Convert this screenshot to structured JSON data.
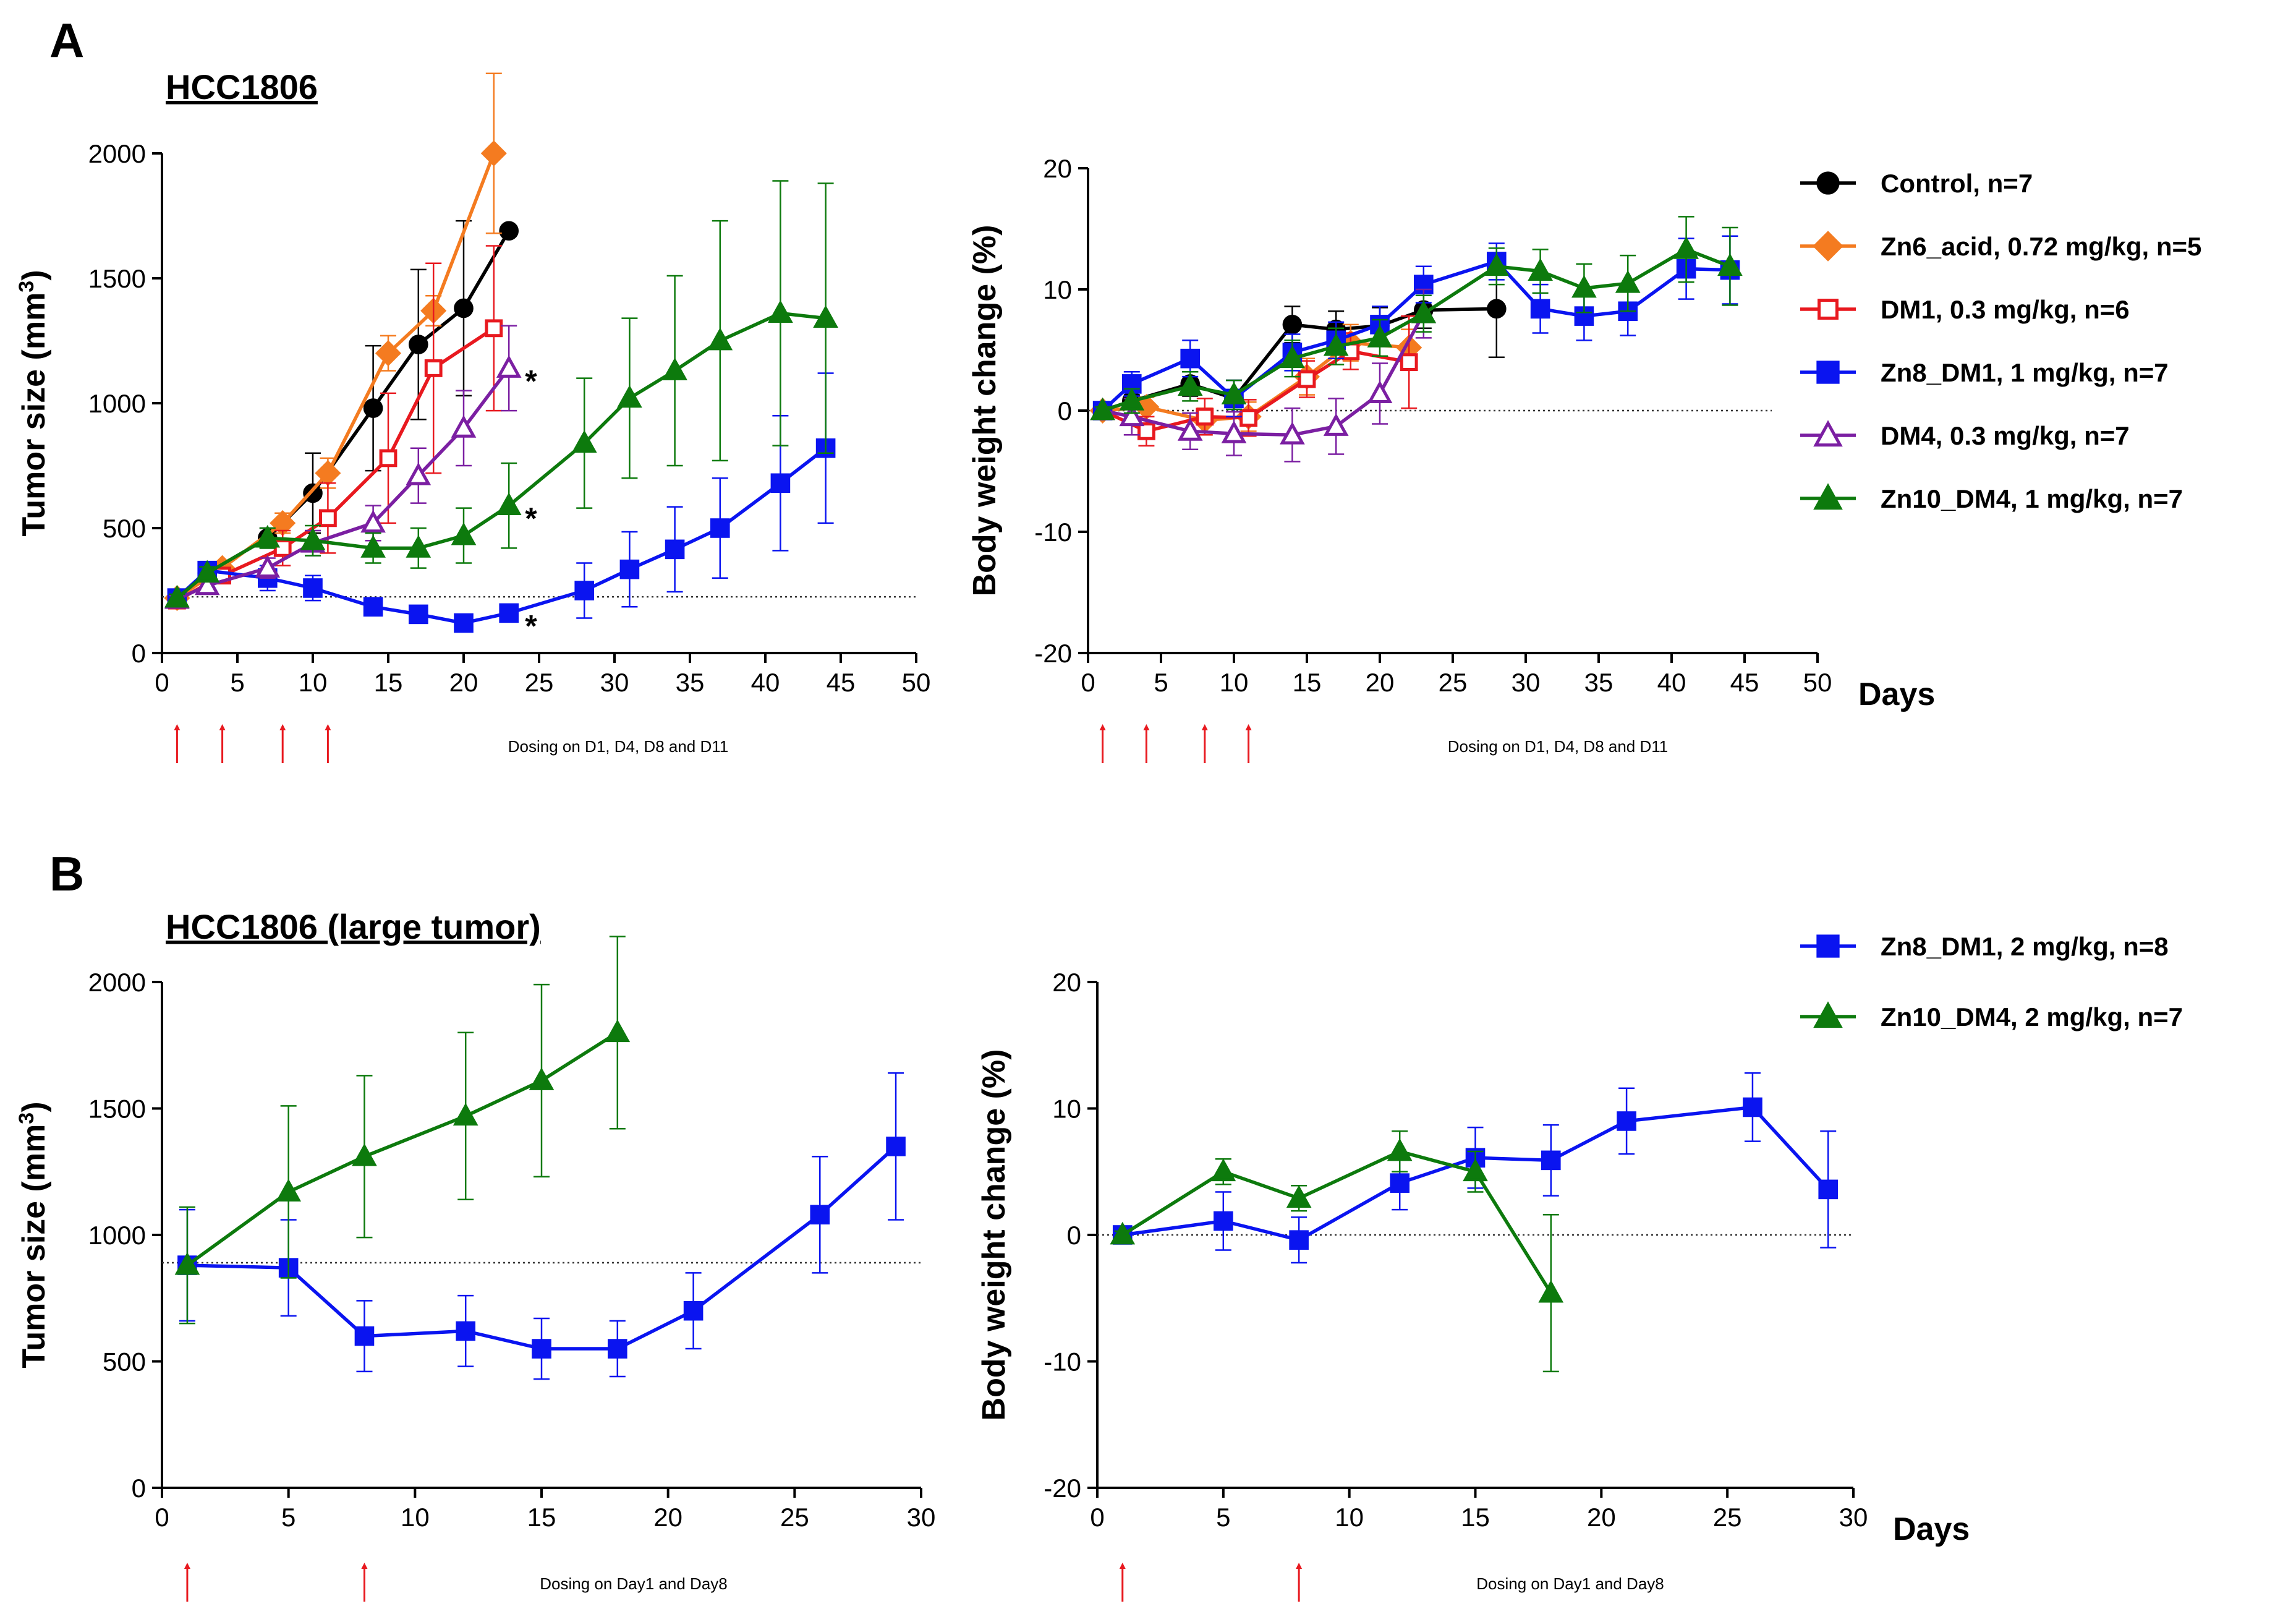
{
  "panels": {
    "a": {
      "letter": "A",
      "title": "HCC1806",
      "dosing_note": "Dosing on D1, D4, D8 and D11",
      "dosing_days": [
        1,
        4,
        8,
        11
      ]
    },
    "b": {
      "letter": "B",
      "title": "HCC1806 (large tumor)",
      "dosing_note": "Dosing on Day1 and Day8",
      "dosing_days": [
        1,
        8
      ]
    }
  },
  "labels": {
    "days": "Days",
    "tumor_size_pre": "Tumor size (mm",
    "tumor_size_sup": "3",
    "tumor_size_post": ")",
    "sig": "*"
  },
  "legend_a": [
    {
      "label": "Control, n=7",
      "color": "#000000",
      "marker": "circle",
      "filled": true
    },
    {
      "label": "Zn6_acid, 0.72 mg/kg, n=5",
      "color": "#f47b20",
      "marker": "diamond",
      "filled": true
    },
    {
      "label": "DM1, 0.3 mg/kg, n=6",
      "color": "#e8191f",
      "marker": "square",
      "filled": false
    },
    {
      "label": "Zn8_DM1, 1 mg/kg, n=7",
      "color": "#0a14f0",
      "marker": "square",
      "filled": true
    },
    {
      "label": "DM4, 0.3 mg/kg, n=7",
      "color": "#7b1fa2",
      "marker": "triangle",
      "filled": false
    },
    {
      "label": "Zn10_DM4, 1 mg/kg, n=7",
      "color": "#0d7a0d",
      "marker": "triangle",
      "filled": true
    }
  ],
  "legend_b": [
    {
      "label": "Zn8_DM1, 2 mg/kg, n=8",
      "color": "#0a14f0",
      "marker": "square",
      "filled": true
    },
    {
      "label": "Zn10_DM4, 2 mg/kg, n=7",
      "color": "#0d7a0d",
      "marker": "triangle",
      "filled": true
    }
  ],
  "chart_data": [
    {
      "id": "a_tumor",
      "type": "line",
      "title": "HCC1806",
      "xlabel": "",
      "ylabel": "Tumor size (mm3)",
      "xlim": [
        0,
        50
      ],
      "ylim": [
        0,
        2000
      ],
      "xticks": [
        0,
        5,
        10,
        15,
        20,
        25,
        30,
        35,
        40,
        45,
        50
      ],
      "yticks": [
        0,
        500,
        1000,
        1500,
        2000
      ],
      "baseline": 225,
      "series": [
        {
          "name": "Control, n=7",
          "x": [
            1,
            3,
            7,
            10,
            14,
            17,
            20,
            23
          ],
          "y": [
            220,
            320,
            460,
            640,
            980,
            1235,
            1380,
            1690
          ],
          "err": [
            20,
            25,
            40,
            160,
            250,
            300,
            350,
            0
          ]
        },
        {
          "name": "Zn6_acid, 0.72 mg/kg, n=5",
          "x": [
            1,
            4,
            8,
            11,
            15,
            18,
            22
          ],
          "y": [
            220,
            340,
            520,
            720,
            1200,
            1370,
            2000
          ],
          "err": [
            15,
            25,
            40,
            60,
            70,
            60,
            320
          ]
        },
        {
          "name": "DM1, 0.3 mg/kg, n=6",
          "x": [
            1,
            4,
            8,
            11,
            15,
            18,
            22
          ],
          "y": [
            210,
            310,
            420,
            540,
            780,
            1140,
            1300
          ],
          "err": [
            15,
            30,
            70,
            140,
            260,
            420,
            330
          ]
        },
        {
          "name": "Zn8_DM1, 1 mg/kg, n=7",
          "x": [
            1,
            3,
            7,
            10,
            14,
            17,
            20,
            23,
            28,
            31,
            34,
            37,
            41,
            44
          ],
          "y": [
            220,
            330,
            300,
            260,
            185,
            155,
            120,
            160,
            250,
            335,
            415,
            500,
            680,
            820
          ],
          "err": [
            10,
            30,
            50,
            50,
            30,
            30,
            25,
            30,
            110,
            150,
            170,
            200,
            270,
            300
          ]
        },
        {
          "name": "DM4, 0.3 mg/kg, n=7",
          "x": [
            1,
            3,
            7,
            10,
            14,
            17,
            20,
            23
          ],
          "y": [
            215,
            270,
            340,
            440,
            520,
            710,
            900,
            1140
          ],
          "err": [
            15,
            20,
            40,
            50,
            70,
            110,
            150,
            170
          ]
        },
        {
          "name": "Zn10_DM4, 1 mg/kg, n=7",
          "x": [
            1,
            3,
            7,
            10,
            14,
            17,
            20,
            23,
            28,
            31,
            34,
            37,
            41,
            44
          ],
          "y": [
            220,
            320,
            460,
            450,
            420,
            420,
            470,
            590,
            840,
            1020,
            1130,
            1250,
            1360,
            1340
          ],
          "err": [
            15,
            25,
            40,
            60,
            60,
            80,
            110,
            170,
            260,
            320,
            380,
            480,
            530,
            540
          ]
        }
      ],
      "significance": [
        {
          "x": 23,
          "y": 1140
        },
        {
          "x": 23,
          "y": 590
        },
        {
          "x": 23,
          "y": 160
        }
      ]
    },
    {
      "id": "a_weight",
      "type": "line",
      "xlabel": "Days",
      "ylabel": "Body weight change (%)",
      "xlim": [
        0,
        50
      ],
      "ylim": [
        -20,
        20
      ],
      "xticks": [
        0,
        5,
        10,
        15,
        20,
        25,
        30,
        35,
        40,
        45,
        50
      ],
      "yticks": [
        -20,
        -10,
        0,
        10,
        20
      ],
      "baseline": 0,
      "series": [
        {
          "name": "Control, n=7",
          "x": [
            1,
            3,
            7,
            10,
            14,
            17,
            20,
            23,
            28
          ],
          "y": [
            0,
            0.8,
            2.2,
            1.0,
            7.1,
            6.7,
            7.0,
            8.3,
            8.4
          ],
          "err": [
            0.3,
            0.5,
            1.0,
            1.5,
            1.5,
            1.5,
            1.5,
            1.5,
            4.0
          ]
        },
        {
          "name": "Zn6_acid, 0.72 mg/kg, n=5",
          "x": [
            1,
            4,
            8,
            11,
            15,
            18,
            22
          ],
          "y": [
            0,
            0.3,
            -0.8,
            -0.5,
            2.8,
            5.6,
            5.2
          ],
          "err": [
            0.3,
            0.8,
            1.0,
            1.2,
            1.5,
            1.5,
            1.5
          ]
        },
        {
          "name": "DM1, 0.3 mg/kg, n=6",
          "x": [
            1,
            4,
            8,
            11,
            15,
            18,
            22
          ],
          "y": [
            0,
            -1.7,
            -0.5,
            -0.6,
            2.6,
            4.9,
            4.0
          ],
          "err": [
            0.3,
            1.2,
            1.5,
            1.5,
            1.5,
            1.5,
            3.8
          ]
        },
        {
          "name": "Zn8_DM1, 1 mg/kg, n=7",
          "x": [
            1,
            3,
            7,
            10,
            14,
            17,
            20,
            23,
            28,
            31,
            34,
            37,
            41,
            44
          ],
          "y": [
            0,
            2.2,
            4.3,
            1.0,
            4.8,
            5.8,
            7.1,
            10.4,
            12.3,
            8.4,
            7.8,
            8.2,
            11.7,
            11.6
          ],
          "err": [
            0.3,
            1.0,
            1.5,
            1.5,
            1.5,
            1.5,
            1.5,
            1.5,
            1.5,
            2.0,
            2.0,
            2.0,
            2.5,
            2.8
          ]
        },
        {
          "name": "DM4, 0.3 mg/kg, n=7",
          "x": [
            1,
            3,
            7,
            10,
            14,
            17,
            20,
            23
          ],
          "y": [
            0,
            -0.5,
            -1.7,
            -1.9,
            -2.0,
            -1.3,
            1.4,
            8.0
          ],
          "err": [
            0.3,
            1.5,
            1.5,
            1.8,
            2.2,
            2.3,
            2.5,
            2.0
          ]
        },
        {
          "name": "Zn10_DM4, 1 mg/kg, n=7",
          "x": [
            1,
            3,
            7,
            10,
            14,
            17,
            20,
            23,
            28,
            31,
            34,
            37,
            41,
            44
          ],
          "y": [
            0,
            0.8,
            2.0,
            1.3,
            4.3,
            5.3,
            6.0,
            8.0,
            11.9,
            11.5,
            10.1,
            10.5,
            13.3,
            11.9
          ],
          "err": [
            0.3,
            1.0,
            1.2,
            1.2,
            1.5,
            1.5,
            1.5,
            1.5,
            1.5,
            1.8,
            2.0,
            2.3,
            2.7,
            3.2
          ]
        }
      ]
    },
    {
      "id": "b_tumor",
      "type": "line",
      "title": "HCC1806 (large tumor)",
      "xlabel": "",
      "ylabel": "Tumor size (mm3)",
      "xlim": [
        0,
        30
      ],
      "ylim": [
        0,
        2000
      ],
      "xticks": [
        0,
        5,
        10,
        15,
        20,
        25,
        30
      ],
      "yticks": [
        0,
        500,
        1000,
        1500,
        2000
      ],
      "baseline": 890,
      "series": [
        {
          "name": "Zn8_DM1, 2 mg/kg, n=8",
          "x": [
            1,
            5,
            8,
            12,
            15,
            18,
            21,
            26,
            29
          ],
          "y": [
            880,
            870,
            600,
            620,
            550,
            550,
            700,
            1080,
            1350
          ],
          "err": [
            220,
            190,
            140,
            140,
            120,
            110,
            150,
            230,
            290
          ]
        },
        {
          "name": "Zn10_DM4, 2 mg/kg, n=7",
          "x": [
            1,
            5,
            8,
            12,
            15,
            18
          ],
          "y": [
            880,
            1170,
            1310,
            1470,
            1610,
            1800
          ],
          "err": [
            230,
            340,
            320,
            330,
            380,
            380
          ]
        }
      ]
    },
    {
      "id": "b_weight",
      "type": "line",
      "xlabel": "Days",
      "ylabel": "Body weight change (%)",
      "xlim": [
        0,
        30
      ],
      "ylim": [
        -20,
        20
      ],
      "xticks": [
        0,
        5,
        10,
        15,
        20,
        25,
        30
      ],
      "yticks": [
        -20,
        -10,
        0,
        10,
        20
      ],
      "baseline": 0,
      "series": [
        {
          "name": "Zn8_DM1, 2 mg/kg, n=8",
          "x": [
            1,
            5,
            8,
            12,
            15,
            18,
            21,
            26,
            29
          ],
          "y": [
            0,
            1.1,
            -0.4,
            4.1,
            6.1,
            5.9,
            9.0,
            10.1,
            3.6
          ],
          "err": [
            0.3,
            2.3,
            1.8,
            2.1,
            2.4,
            2.8,
            2.6,
            2.7,
            4.6
          ]
        },
        {
          "name": "Zn10_DM4, 2 mg/kg, n=7",
          "x": [
            1,
            5,
            8,
            12,
            15,
            18
          ],
          "y": [
            0,
            5.0,
            2.9,
            6.6,
            5.0,
            -4.6
          ],
          "err": [
            0.3,
            1.0,
            1.0,
            1.6,
            1.6,
            6.2
          ]
        }
      ]
    }
  ]
}
